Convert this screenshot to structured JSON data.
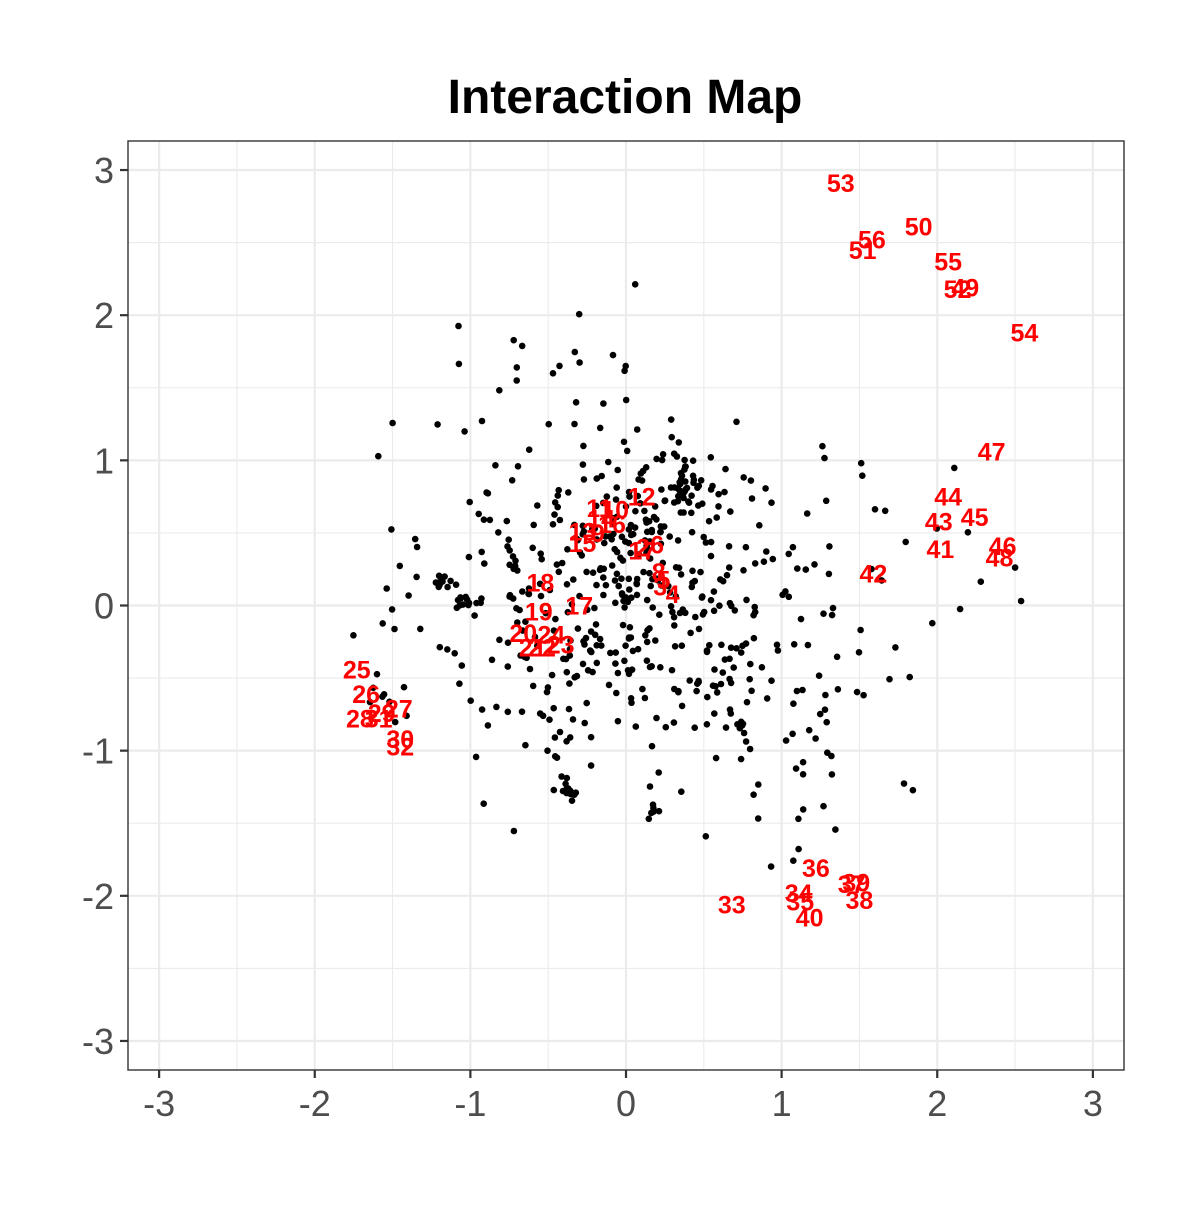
{
  "chart_data": {
    "type": "scatter",
    "title": "Interaction Map",
    "xlabel": "",
    "ylabel": "",
    "xlim": [
      -3.2,
      3.2
    ],
    "ylim": [
      -3.2,
      3.2
    ],
    "x_ticks": [
      -3,
      -2,
      -1,
      0,
      1,
      2,
      3
    ],
    "y_ticks": [
      -3,
      -2,
      -1,
      0,
      1,
      2,
      3
    ],
    "x_tick_labels": [
      "-3",
      "-2",
      "-1",
      "0",
      "1",
      "2",
      "3"
    ],
    "y_tick_labels": [
      "-3",
      "-2",
      "-1",
      "0",
      "1",
      "2",
      "3"
    ],
    "grid": true,
    "point_color": "#000000",
    "label_color": "#ff0000",
    "labels": [
      {
        "text": "1",
        "x": 0.06,
        "y": 0.38
      },
      {
        "text": "2",
        "x": 0.11,
        "y": 0.4
      },
      {
        "text": "3",
        "x": 0.22,
        "y": 0.13
      },
      {
        "text": "4",
        "x": 0.3,
        "y": 0.08
      },
      {
        "text": "5",
        "x": 0.24,
        "y": 0.18
      },
      {
        "text": "6",
        "x": 0.2,
        "y": 0.42
      },
      {
        "text": "7",
        "x": 0.15,
        "y": 0.38
      },
      {
        "text": "8",
        "x": 0.21,
        "y": 0.23
      },
      {
        "text": "9",
        "x": -0.18,
        "y": 0.5
      },
      {
        "text": "10",
        "x": -0.07,
        "y": 0.66
      },
      {
        "text": "11",
        "x": -0.17,
        "y": 0.67
      },
      {
        "text": "12",
        "x": 0.1,
        "y": 0.75
      },
      {
        "text": "13",
        "x": -0.28,
        "y": 0.51
      },
      {
        "text": "14",
        "x": -0.16,
        "y": 0.6
      },
      {
        "text": "15",
        "x": -0.28,
        "y": 0.43
      },
      {
        "text": "16",
        "x": -0.09,
        "y": 0.56
      },
      {
        "text": "17",
        "x": -0.3,
        "y": 0.0
      },
      {
        "text": "18",
        "x": -0.55,
        "y": 0.16
      },
      {
        "text": "19",
        "x": -0.56,
        "y": -0.04
      },
      {
        "text": "20",
        "x": -0.66,
        "y": -0.19
      },
      {
        "text": "21",
        "x": -0.6,
        "y": -0.29
      },
      {
        "text": "22",
        "x": -0.54,
        "y": -0.29
      },
      {
        "text": "23",
        "x": -0.42,
        "y": -0.27
      },
      {
        "text": "24",
        "x": -0.48,
        "y": -0.2
      },
      {
        "text": "25",
        "x": -1.73,
        "y": -0.44
      },
      {
        "text": "26",
        "x": -1.67,
        "y": -0.61
      },
      {
        "text": "27",
        "x": -1.46,
        "y": -0.71
      },
      {
        "text": "28",
        "x": -1.71,
        "y": -0.78
      },
      {
        "text": "29",
        "x": -1.57,
        "y": -0.74
      },
      {
        "text": "30",
        "x": -1.45,
        "y": -0.92
      },
      {
        "text": "31",
        "x": -1.59,
        "y": -0.78
      },
      {
        "text": "32",
        "x": -1.45,
        "y": -0.97
      },
      {
        "text": "33",
        "x": 0.68,
        "y": -2.06
      },
      {
        "text": "34",
        "x": 1.11,
        "y": -1.98
      },
      {
        "text": "35",
        "x": 1.12,
        "y": -2.04
      },
      {
        "text": "36",
        "x": 1.22,
        "y": -1.81
      },
      {
        "text": "37",
        "x": 1.45,
        "y": -1.92
      },
      {
        "text": "38",
        "x": 1.5,
        "y": -2.03
      },
      {
        "text": "39",
        "x": 1.48,
        "y": -1.91
      },
      {
        "text": "40",
        "x": 1.18,
        "y": -2.15
      },
      {
        "text": "41",
        "x": 2.02,
        "y": 0.39
      },
      {
        "text": "42",
        "x": 1.59,
        "y": 0.22
      },
      {
        "text": "43",
        "x": 2.01,
        "y": 0.58
      },
      {
        "text": "44",
        "x": 2.07,
        "y": 0.75
      },
      {
        "text": "45",
        "x": 2.24,
        "y": 0.61
      },
      {
        "text": "46",
        "x": 2.42,
        "y": 0.41
      },
      {
        "text": "47",
        "x": 2.35,
        "y": 1.06
      },
      {
        "text": "48",
        "x": 2.4,
        "y": 0.33
      },
      {
        "text": "49",
        "x": 2.18,
        "y": 2.19
      },
      {
        "text": "50",
        "x": 1.88,
        "y": 2.61
      },
      {
        "text": "51",
        "x": 1.52,
        "y": 2.45
      },
      {
        "text": "52",
        "x": 2.13,
        "y": 2.18
      },
      {
        "text": "53",
        "x": 1.38,
        "y": 2.91
      },
      {
        "text": "54",
        "x": 2.56,
        "y": 1.88
      },
      {
        "text": "55",
        "x": 2.07,
        "y": 2.37
      },
      {
        "text": "56",
        "x": 1.58,
        "y": 2.52
      }
    ]
  }
}
